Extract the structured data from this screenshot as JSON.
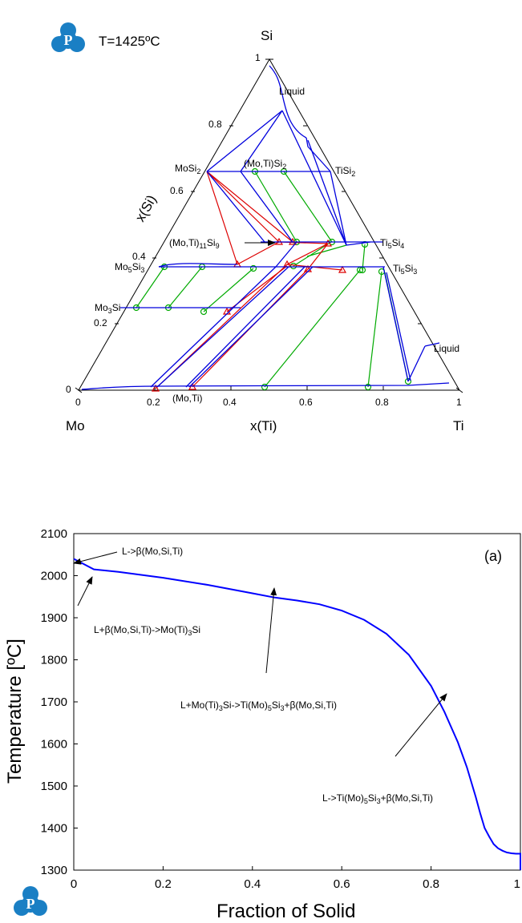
{
  "ternary": {
    "title_temperature": "T=1425ºC",
    "apex_top": "Si",
    "apex_left": "Mo",
    "apex_right": "Ti",
    "axis_left_label": "x(Si)",
    "axis_bottom_label": "x(Ti)",
    "left_ticks": [
      "0",
      "0.2",
      "0.4",
      "0.6",
      "0.8",
      "1"
    ],
    "bottom_ticks": [
      "0",
      "0.2",
      "0.4",
      "0.6",
      "0.8",
      "1"
    ],
    "phase_labels": {
      "liquid_si": "Liquid",
      "mosi2": "MoSi",
      "mosi2_sub": "2",
      "motisi2_pre": "(Mo,Ti)Si",
      "motisi2_sub": "2",
      "tisi2": "TiSi",
      "tisi2_sub": "2",
      "moti11si9_pre": "(Mo,Ti)",
      "moti11si9_sub1": "11",
      "moti11si9_mid": "Si",
      "moti11si9_sub2": "9",
      "ti5si4": "Ti",
      "ti5si4_s1": "5",
      "ti5si4_mid": "Si",
      "ti5si4_s2": "4",
      "mo5si3": "Mo",
      "mo5si3_s1": "5",
      "mo5si3_mid": "Si",
      "mo5si3_s2": "3",
      "ti5si3": "Ti",
      "ti5si3_s1": "5",
      "ti5si3_mid": "Si",
      "ti5si3_s2": "3",
      "mo3si": "Mo",
      "mo3si_s1": "3",
      "mo3si_mid": "Si",
      "liquid_ti": "Liquid",
      "moti": "(Mo,Ti)"
    },
    "colors": {
      "boundary": "#0000dd",
      "tie_green": "#00aa00",
      "tie_red": "#dd0000"
    }
  },
  "chart_data": {
    "type": "line",
    "title": "",
    "panel_label": "(a)",
    "xlabel": "Fraction of Solid",
    "ylabel": "Temperature [ºC]",
    "xlim": [
      0,
      1
    ],
    "ylim": [
      1300,
      2100
    ],
    "xticks": [
      "0",
      "0.2",
      "0.4",
      "0.6",
      "0.8",
      "1"
    ],
    "yticks": [
      "1300",
      "1400",
      "1500",
      "1600",
      "1700",
      "1800",
      "1900",
      "2000",
      "2100"
    ],
    "series": [
      {
        "color": "#0000ff",
        "x": [
          0.0,
          0.045,
          0.1,
          0.2,
          0.3,
          0.4,
          0.45,
          0.5,
          0.55,
          0.6,
          0.65,
          0.7,
          0.75,
          0.8,
          0.83,
          0.86,
          0.88,
          0.9,
          0.91,
          0.92,
          0.93,
          0.94,
          0.95,
          0.96,
          0.97,
          0.98,
          0.99,
          1.0
        ],
        "y": [
          2040,
          2015,
          2009,
          1995,
          1978,
          1958,
          1948,
          1941,
          1932,
          1917,
          1895,
          1862,
          1812,
          1738,
          1676,
          1604,
          1545,
          1474,
          1435,
          1400,
          1380,
          1362,
          1352,
          1346,
          1342,
          1340,
          1339,
          1339
        ]
      }
    ],
    "annotations": [
      {
        "text": "L->β(Mo,Si,Ti)"
      },
      {
        "text": "L+β(Mo,Si,Ti)->Mo(Ti)",
        "sub": "3",
        "tail": "Si"
      },
      {
        "text": "L+Mo(Ti)",
        "sub": "3",
        "tail": "Si->Ti(Mo)",
        "sub2": "5",
        "tail2": "Si",
        "sub3": "3",
        "tail3": "+β(Mo,Si,Ti)"
      },
      {
        "text": "L->Ti(Mo)",
        "sub": "5",
        "tail": "Si",
        "sub2": "3",
        "tail2": "+β(Mo,Si,Ti)"
      }
    ]
  }
}
